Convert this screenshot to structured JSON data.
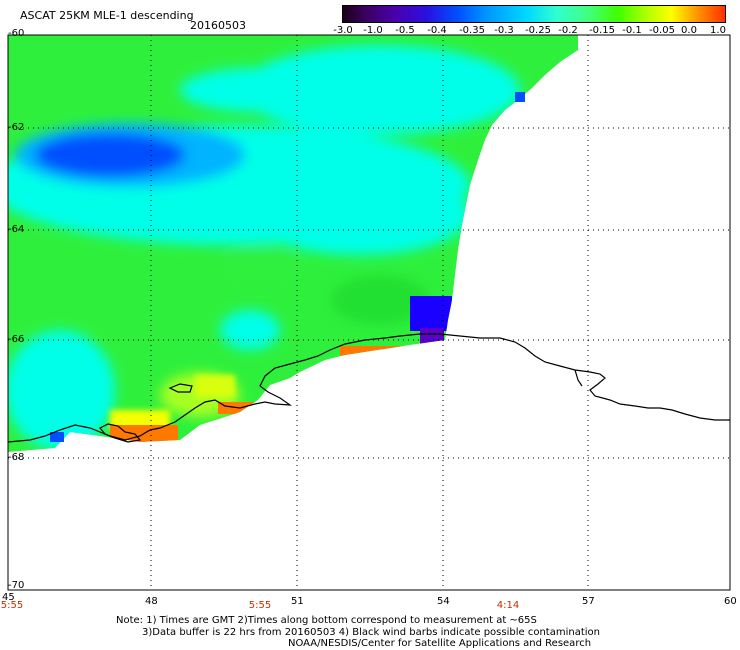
{
  "title": "ASCAT 25KM MLE-1 descending",
  "date": "20160503",
  "colorbar": {
    "labels": [
      "-3.0",
      "-1.0",
      "-0.5",
      "-0.4",
      "-0.35",
      "-0.3",
      "-0.25",
      "-0.2",
      "-0.15",
      "-0.1",
      "-0.05",
      "0.0",
      "1.0"
    ]
  },
  "lat_ticks": [
    "-60",
    "-62",
    "-64",
    "-66",
    "-68",
    "-70"
  ],
  "lon_ticks": [
    "45",
    "48",
    "51",
    "54",
    "57",
    "60"
  ],
  "time_labels": [
    "5:55",
    "5:55",
    "4:14"
  ],
  "notes": {
    "line1": "Note: 1) Times are GMT 2)Times along bottom correspond to measurement at ~65S",
    "line2": "3)Data buffer is 22 hrs from 20160503 4) Black wind barbs indicate possible contamination",
    "line3": "NOAA/NESDIS/Center for Satellite Applications and Research"
  },
  "colors": {
    "ocean_green": "#2ef03c",
    "cyan": "#00ffe8",
    "light_blue": "#00b4ff",
    "blue": "#0050ff",
    "deep_blue": "#1a00ff",
    "purple": "#5a00c8",
    "yellow": "#f4ff00",
    "orange": "#ff7800"
  }
}
